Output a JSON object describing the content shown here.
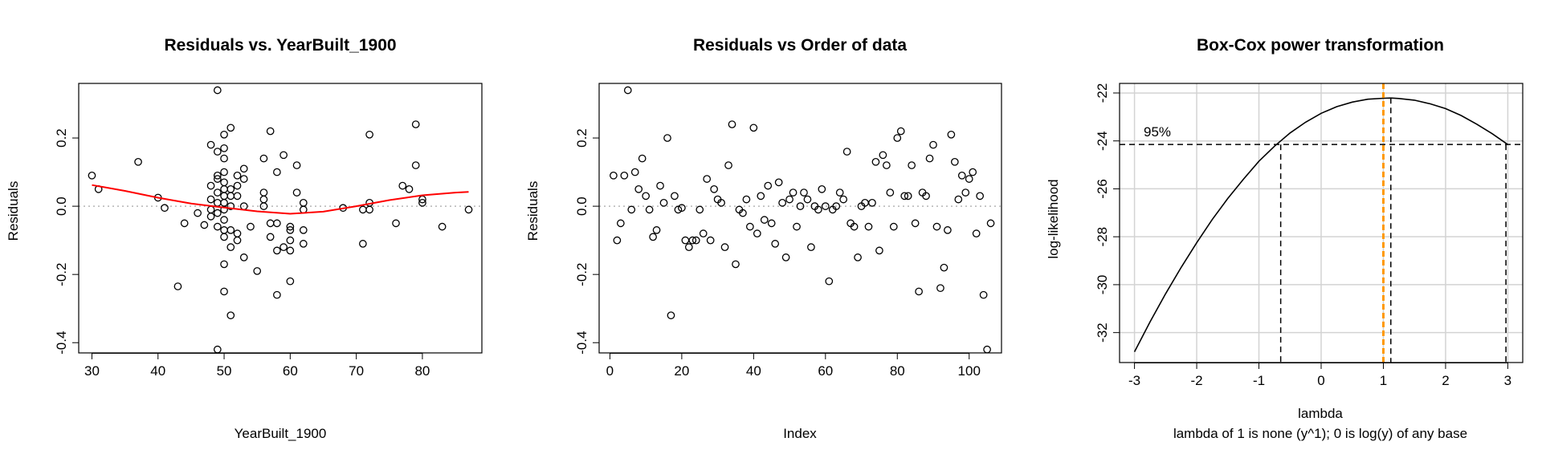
{
  "chart_data": [
    {
      "type": "scatter",
      "title": "Residuals vs. YearBuilt_1900",
      "xlabel": "YearBuilt_1900",
      "ylabel": "Residuals",
      "xlim": [
        28,
        89
      ],
      "ylim": [
        -0.43,
        0.36
      ],
      "xticks": [
        30,
        40,
        50,
        60,
        70,
        80
      ],
      "yticks": [
        -0.4,
        -0.2,
        0.0,
        0.2
      ],
      "ytick_labels": [
        "-0.4",
        "-0.2",
        "0.0",
        "0.2"
      ],
      "reference_line_y": 0,
      "points": [
        [
          30,
          0.09
        ],
        [
          31,
          0.05
        ],
        [
          37,
          0.13
        ],
        [
          40,
          0.025
        ],
        [
          41,
          -0.005
        ],
        [
          43,
          -0.235
        ],
        [
          44,
          -0.05
        ],
        [
          46,
          -0.02
        ],
        [
          47,
          -0.055
        ],
        [
          48,
          0.18
        ],
        [
          48,
          0.06
        ],
        [
          48,
          0.02
        ],
        [
          48,
          -0.01
        ],
        [
          48,
          -0.03
        ],
        [
          49,
          0.34
        ],
        [
          49,
          0.16
        ],
        [
          49,
          0.09
        ],
        [
          49,
          0.08
        ],
        [
          49,
          0.04
        ],
        [
          49,
          0.01
        ],
        [
          49,
          -0.02
        ],
        [
          49,
          -0.06
        ],
        [
          49,
          -0.42
        ],
        [
          50,
          0.21
        ],
        [
          50,
          0.17
        ],
        [
          50,
          0.14
        ],
        [
          50,
          0.1
        ],
        [
          50,
          0.07
        ],
        [
          50,
          0.05
        ],
        [
          50,
          0.03
        ],
        [
          50,
          0.01
        ],
        [
          50,
          -0.01
        ],
        [
          50,
          -0.04
        ],
        [
          50,
          -0.07
        ],
        [
          50,
          -0.09
        ],
        [
          50,
          -0.17
        ],
        [
          50,
          -0.25
        ],
        [
          51,
          0.23
        ],
        [
          51,
          0.05
        ],
        [
          51,
          0.03
        ],
        [
          51,
          0.0
        ],
        [
          51,
          -0.07
        ],
        [
          51,
          -0.12
        ],
        [
          51,
          -0.32
        ],
        [
          52,
          0.09
        ],
        [
          52,
          0.06
        ],
        [
          52,
          0.03
        ],
        [
          52,
          -0.08
        ],
        [
          52,
          -0.1
        ],
        [
          53,
          0.11
        ],
        [
          53,
          0.08
        ],
        [
          53,
          0.0
        ],
        [
          53,
          -0.15
        ],
        [
          54,
          -0.06
        ],
        [
          55,
          -0.19
        ],
        [
          56,
          0.14
        ],
        [
          56,
          0.04
        ],
        [
          56,
          0.02
        ],
        [
          56,
          0.0
        ],
        [
          57,
          0.22
        ],
        [
          57,
          -0.05
        ],
        [
          57,
          -0.09
        ],
        [
          58,
          0.1
        ],
        [
          58,
          -0.05
        ],
        [
          58,
          -0.13
        ],
        [
          58,
          -0.26
        ],
        [
          59,
          0.15
        ],
        [
          59,
          -0.12
        ],
        [
          60,
          -0.06
        ],
        [
          60,
          -0.07
        ],
        [
          60,
          -0.1
        ],
        [
          60,
          -0.13
        ],
        [
          60,
          -0.22
        ],
        [
          61,
          0.12
        ],
        [
          61,
          0.04
        ],
        [
          62,
          0.01
        ],
        [
          62,
          -0.01
        ],
        [
          62,
          -0.07
        ],
        [
          62,
          -0.11
        ],
        [
          68,
          -0.005
        ],
        [
          71,
          -0.01
        ],
        [
          71,
          -0.11
        ],
        [
          72,
          0.21
        ],
        [
          72,
          0.01
        ],
        [
          72,
          -0.01
        ],
        [
          76,
          -0.05
        ],
        [
          77,
          0.06
        ],
        [
          78,
          0.05
        ],
        [
          79,
          0.24
        ],
        [
          79,
          0.12
        ],
        [
          80,
          0.02
        ],
        [
          80,
          0.01
        ],
        [
          83,
          -0.06
        ],
        [
          87,
          -0.01
        ]
      ],
      "smooth_line": [
        [
          30,
          0.062
        ],
        [
          35,
          0.045
        ],
        [
          40,
          0.025
        ],
        [
          45,
          0.008
        ],
        [
          50,
          -0.004
        ],
        [
          55,
          -0.015
        ],
        [
          60,
          -0.022
        ],
        [
          65,
          -0.016
        ],
        [
          70,
          0.0
        ],
        [
          75,
          0.018
        ],
        [
          80,
          0.032
        ],
        [
          85,
          0.04
        ],
        [
          87,
          0.042
        ]
      ]
    },
    {
      "type": "scatter",
      "title": "Residuals vs Order of data",
      "xlabel": "Index",
      "ylabel": "Residuals",
      "xlim": [
        -3,
        109
      ],
      "ylim": [
        -0.43,
        0.36
      ],
      "xticks": [
        0,
        20,
        40,
        60,
        80,
        100
      ],
      "yticks": [
        -0.4,
        -0.2,
        0.0,
        0.2
      ],
      "ytick_labels": [
        "-0.4",
        "-0.2",
        "0.0",
        "0.2"
      ],
      "reference_line_y": 0,
      "values": [
        0.09,
        -0.1,
        -0.05,
        0.09,
        0.34,
        -0.01,
        0.1,
        0.05,
        0.14,
        0.03,
        -0.01,
        -0.09,
        -0.07,
        0.06,
        0.01,
        0.2,
        -0.32,
        0.03,
        -0.01,
        -0.005,
        -0.1,
        -0.12,
        -0.1,
        -0.1,
        -0.01,
        -0.08,
        0.08,
        -0.1,
        0.05,
        0.02,
        0.01,
        -0.12,
        0.12,
        0.24,
        -0.17,
        -0.01,
        -0.02,
        0.02,
        -0.06,
        0.23,
        -0.08,
        0.03,
        -0.04,
        0.06,
        -0.05,
        -0.11,
        0.07,
        0.01,
        -0.15,
        0.02,
        0.04,
        -0.06,
        0.0,
        0.04,
        0.02,
        -0.12,
        0.0,
        -0.01,
        0.05,
        0.0,
        -0.22,
        -0.01,
        0.0,
        0.04,
        0.02,
        0.16,
        -0.05,
        -0.06,
        -0.15,
        0.0,
        0.01,
        -0.06,
        0.01,
        0.13,
        -0.13,
        0.15,
        0.12,
        0.04,
        -0.06,
        0.2,
        0.22,
        0.03,
        0.03,
        0.12,
        -0.05,
        -0.25,
        0.04,
        0.03,
        0.14,
        0.18,
        -0.06,
        -0.24,
        -0.18,
        -0.07,
        0.21,
        0.13,
        0.02,
        0.09,
        0.04,
        0.08,
        0.1,
        -0.08,
        0.03,
        -0.26,
        -0.42,
        -0.05
      ]
    },
    {
      "type": "line",
      "title": "Box-Cox power transformation",
      "xlabel": "lambda",
      "subtitle": "lambda of 1 is none (y^1); 0 is log(y) of any base",
      "ylabel": "log-likelihood",
      "xlim": [
        -3.24,
        3.24
      ],
      "ylim": [
        -33.25,
        -21.6
      ],
      "xticks": [
        -3,
        -2,
        -1,
        0,
        1,
        2,
        3
      ],
      "yticks": [
        -32,
        -30,
        -28,
        -26,
        -24,
        -22
      ],
      "grid": true,
      "curve": [
        [
          -3.0,
          -32.8
        ],
        [
          -2.75,
          -31.55
        ],
        [
          -2.5,
          -30.38
        ],
        [
          -2.25,
          -29.28
        ],
        [
          -2.0,
          -28.25
        ],
        [
          -1.75,
          -27.28
        ],
        [
          -1.5,
          -26.4
        ],
        [
          -1.25,
          -25.6
        ],
        [
          -1.0,
          -24.85
        ],
        [
          -0.75,
          -24.22
        ],
        [
          -0.5,
          -23.67
        ],
        [
          -0.25,
          -23.22
        ],
        [
          0.0,
          -22.85
        ],
        [
          0.25,
          -22.57
        ],
        [
          0.5,
          -22.38
        ],
        [
          0.75,
          -22.26
        ],
        [
          1.0,
          -22.22
        ],
        [
          1.12,
          -22.21
        ],
        [
          1.25,
          -22.23
        ],
        [
          1.5,
          -22.3
        ],
        [
          1.75,
          -22.45
        ],
        [
          2.0,
          -22.65
        ],
        [
          2.25,
          -22.94
        ],
        [
          2.5,
          -23.3
        ],
        [
          2.75,
          -23.7
        ],
        [
          3.0,
          -24.15
        ]
      ],
      "ci_label": "95%",
      "ci_level_y": -24.15,
      "ci_lower": -0.65,
      "lambda_max": 1.12,
      "ci_upper": 2.97,
      "highlight_lambda": 1.0,
      "highlight_color": "#ff9900"
    }
  ]
}
